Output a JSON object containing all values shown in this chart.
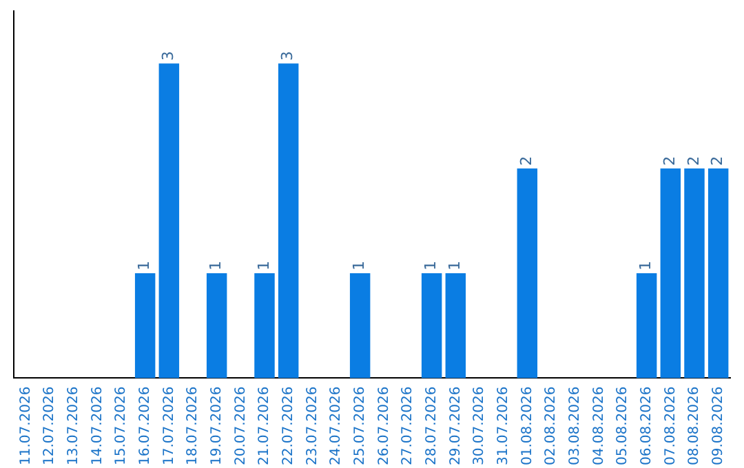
{
  "chart_data": {
    "type": "bar",
    "categories": [
      "11.07.2026",
      "12.07.2026",
      "13.07.2026",
      "14.07.2026",
      "15.07.2026",
      "16.07.2026",
      "17.07.2026",
      "18.07.2026",
      "19.07.2026",
      "20.07.2026",
      "21.07.2026",
      "22.07.2026",
      "23.07.2026",
      "24.07.2026",
      "25.07.2026",
      "26.07.2026",
      "27.07.2026",
      "28.07.2026",
      "29.07.2026",
      "30.07.2026",
      "31.07.2026",
      "01.08.2026",
      "02.08.2026",
      "03.08.2026",
      "04.08.2026",
      "05.08.2026",
      "06.08.2026",
      "07.08.2026",
      "08.08.2026",
      "09.08.2026"
    ],
    "values": [
      0,
      0,
      0,
      0,
      0,
      1,
      3,
      0,
      1,
      0,
      1,
      3,
      0,
      0,
      1,
      0,
      0,
      1,
      1,
      0,
      0,
      2,
      0,
      0,
      0,
      0,
      1,
      2,
      2,
      2
    ],
    "value_labels": [
      null,
      null,
      null,
      null,
      null,
      "1",
      "3",
      null,
      "1",
      null,
      "1",
      "3",
      null,
      null,
      "1",
      null,
      null,
      "1",
      "1",
      null,
      null,
      "2",
      null,
      null,
      null,
      null,
      "1",
      "2",
      "2",
      "2"
    ],
    "color": "#0a7de3",
    "tick_labels": "x",
    "grid": false,
    "legend": false
  }
}
